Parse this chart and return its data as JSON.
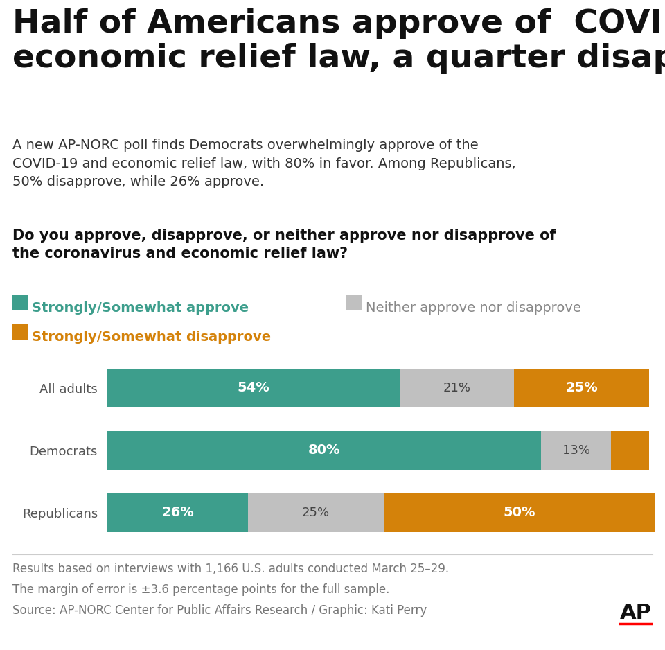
{
  "title": "Half of Americans approve of  COVID and\neconomic relief law, a quarter disapprove",
  "subtitle": "A new AP-NORC poll finds Democrats overwhelmingly approve of the\nCOVID-19 and economic relief law, with 80% in favor. Among Republicans,\n50% disapprove, while 26% approve.",
  "question": "Do you approve, disapprove, or neither approve nor disapprove of\nthe coronavirus and economic relief law?",
  "legend_approve": "Strongly/Somewhat approve",
  "legend_neither": "Neither approve nor disapprove",
  "legend_disapprove": "Strongly/Somewhat disapprove",
  "categories": [
    "All adults",
    "Democrats",
    "Republicans"
  ],
  "approve": [
    54,
    80,
    26
  ],
  "neither": [
    21,
    13,
    25
  ],
  "disapprove": [
    25,
    7,
    50
  ],
  "approve_color": "#3d9e8c",
  "neither_color": "#c0c0c0",
  "disapprove_color": "#d4820a",
  "footnote_line1": "Results based on interviews with 1,166 U.S. adults conducted March 25–29.",
  "footnote_line2": "The margin of error is ±3.6 percentage points for the full sample.",
  "footnote_line3": "Source: AP-NORC Center for Public Affairs Research / Graphic: Kati Perry",
  "ap_logo": "AP",
  "background_color": "#ffffff",
  "title_fontsize": 34,
  "subtitle_fontsize": 14,
  "question_fontsize": 15,
  "legend_fontsize": 14,
  "bar_label_fontsize": 14,
  "yticklabel_fontsize": 13,
  "footnote_fontsize": 12
}
